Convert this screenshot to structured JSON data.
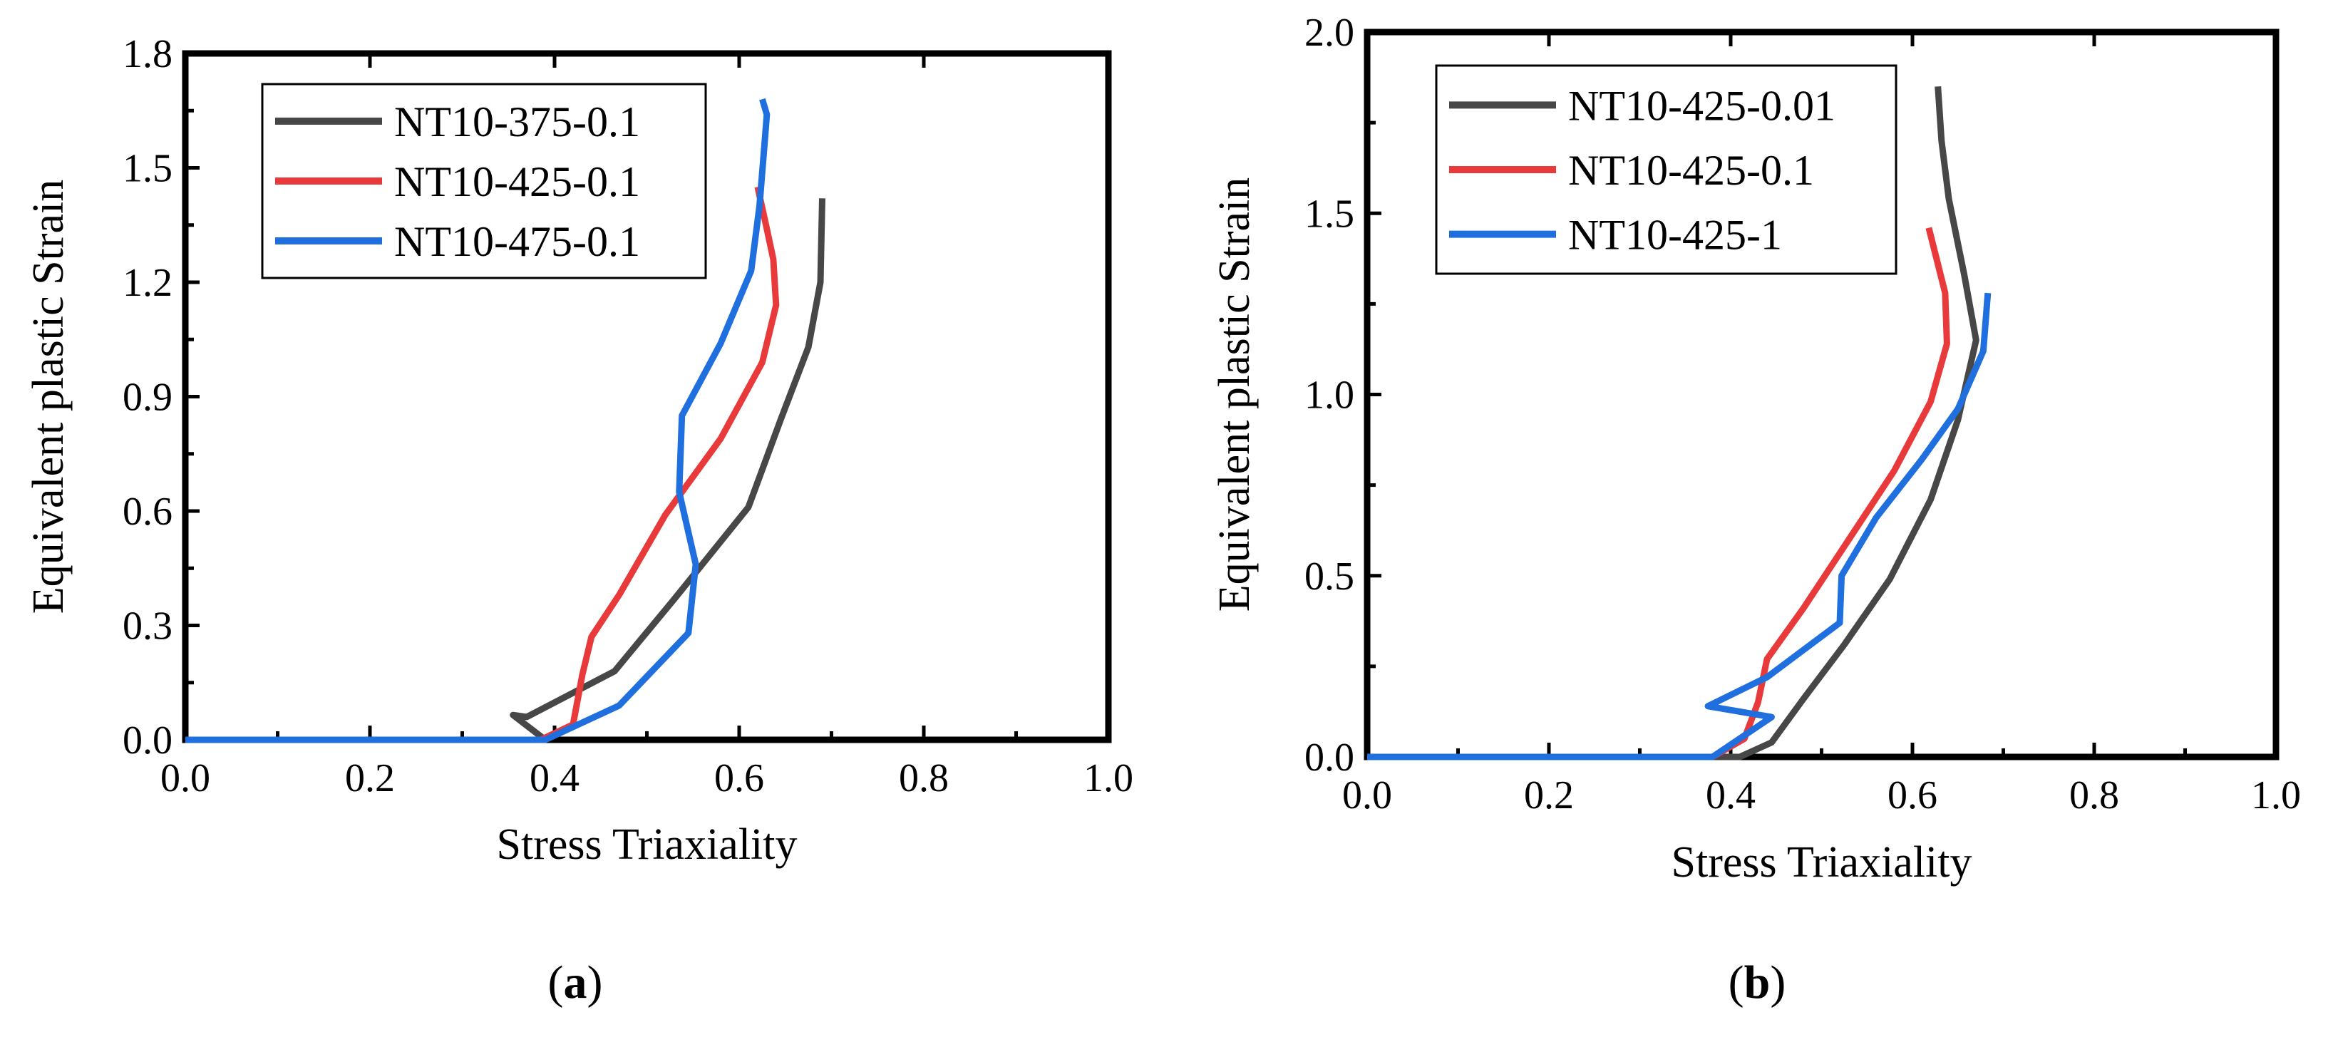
{
  "chart_data": [
    {
      "type": "line",
      "panel_label": "a",
      "title": "",
      "xlabel": "Stress Triaxiality",
      "ylabel": "Equivalent plastic Strain",
      "xlim": [
        0.0,
        1.0
      ],
      "ylim": [
        0.0,
        1.8
      ],
      "xticks": [
        0.0,
        0.2,
        0.4,
        0.6,
        0.8,
        1.0
      ],
      "xtick_labels": [
        "0.0",
        "0.2",
        "0.4",
        "0.6",
        "0.8",
        "1.0"
      ],
      "yticks": [
        0.0,
        0.3,
        0.6,
        0.9,
        1.2,
        1.5,
        1.8
      ],
      "ytick_labels": [
        "0.0",
        "0.3",
        "0.6",
        "0.9",
        "1.2",
        "1.5",
        "1.8"
      ],
      "legend_position": "top-left",
      "grid": false,
      "series": [
        {
          "name": "NT10-375-0.1",
          "color": "#474747",
          "points": [
            [
              0.0,
              0.0
            ],
            [
              0.39,
              0.0
            ],
            [
              0.355,
              0.065
            ],
            [
              0.37,
              0.06
            ],
            [
              0.465,
              0.18
            ],
            [
              0.53,
              0.37
            ],
            [
              0.61,
              0.61
            ],
            [
              0.645,
              0.84
            ],
            [
              0.675,
              1.03
            ],
            [
              0.688,
              1.2
            ],
            [
              0.69,
              1.42
            ]
          ]
        },
        {
          "name": "NT10-425-0.1",
          "color": "#e83a3a",
          "points": [
            [
              0.0,
              0.0
            ],
            [
              0.385,
              0.0
            ],
            [
              0.42,
              0.04
            ],
            [
              0.43,
              0.17
            ],
            [
              0.44,
              0.27
            ],
            [
              0.47,
              0.38
            ],
            [
              0.52,
              0.59
            ],
            [
              0.58,
              0.79
            ],
            [
              0.625,
              0.99
            ],
            [
              0.64,
              1.14
            ],
            [
              0.637,
              1.26
            ],
            [
              0.63,
              1.34
            ],
            [
              0.62,
              1.45
            ]
          ]
        },
        {
          "name": "NT10-475-0.1",
          "color": "#1f6fde",
          "points": [
            [
              0.0,
              0.0
            ],
            [
              0.39,
              0.0
            ],
            [
              0.47,
              0.09
            ],
            [
              0.545,
              0.28
            ],
            [
              0.553,
              0.46
            ],
            [
              0.535,
              0.65
            ],
            [
              0.538,
              0.85
            ],
            [
              0.58,
              1.04
            ],
            [
              0.613,
              1.23
            ],
            [
              0.622,
              1.4
            ],
            [
              0.628,
              1.58
            ],
            [
              0.63,
              1.64
            ],
            [
              0.625,
              1.68
            ]
          ]
        }
      ]
    },
    {
      "type": "line",
      "panel_label": "b",
      "title": "",
      "xlabel": "Stress Triaxiality",
      "ylabel": "Equivalent plastic Strain",
      "xlim": [
        0.0,
        1.0
      ],
      "ylim": [
        0.0,
        2.0
      ],
      "xticks": [
        0.0,
        0.2,
        0.4,
        0.6,
        0.8,
        1.0
      ],
      "xtick_labels": [
        "0.0",
        "0.2",
        "0.4",
        "0.6",
        "0.8",
        "1.0"
      ],
      "yticks": [
        0.0,
        0.5,
        1.0,
        1.5,
        2.0
      ],
      "ytick_labels": [
        "0.0",
        "0.5",
        "1.0",
        "1.5",
        "2.0"
      ],
      "legend_position": "top-left",
      "grid": false,
      "series": [
        {
          "name": "NT10-425-0.01",
          "color": "#474747",
          "points": [
            [
              0.0,
              0.0
            ],
            [
              0.41,
              0.0
            ],
            [
              0.445,
              0.04
            ],
            [
              0.48,
              0.16
            ],
            [
              0.525,
              0.31
            ],
            [
              0.575,
              0.49
            ],
            [
              0.62,
              0.71
            ],
            [
              0.65,
              0.93
            ],
            [
              0.67,
              1.15
            ],
            [
              0.657,
              1.33
            ],
            [
              0.64,
              1.54
            ],
            [
              0.632,
              1.7
            ],
            [
              0.628,
              1.85
            ]
          ]
        },
        {
          "name": "NT10-425-0.1",
          "color": "#e83a3a",
          "points": [
            [
              0.0,
              0.0
            ],
            [
              0.38,
              0.0
            ],
            [
              0.415,
              0.05
            ],
            [
              0.43,
              0.15
            ],
            [
              0.44,
              0.27
            ],
            [
              0.48,
              0.41
            ],
            [
              0.53,
              0.6
            ],
            [
              0.58,
              0.79
            ],
            [
              0.62,
              0.98
            ],
            [
              0.638,
              1.14
            ],
            [
              0.636,
              1.28
            ],
            [
              0.627,
              1.37
            ],
            [
              0.618,
              1.46
            ]
          ]
        },
        {
          "name": "NT10-425-1",
          "color": "#1f6fde",
          "points": [
            [
              0.0,
              0.0
            ],
            [
              0.38,
              0.0
            ],
            [
              0.445,
              0.11
            ],
            [
              0.375,
              0.14
            ],
            [
              0.44,
              0.22
            ],
            [
              0.52,
              0.37
            ],
            [
              0.522,
              0.5
            ],
            [
              0.56,
              0.66
            ],
            [
              0.61,
              0.82
            ],
            [
              0.65,
              0.96
            ],
            [
              0.678,
              1.12
            ],
            [
              0.683,
              1.28
            ]
          ]
        }
      ]
    }
  ]
}
